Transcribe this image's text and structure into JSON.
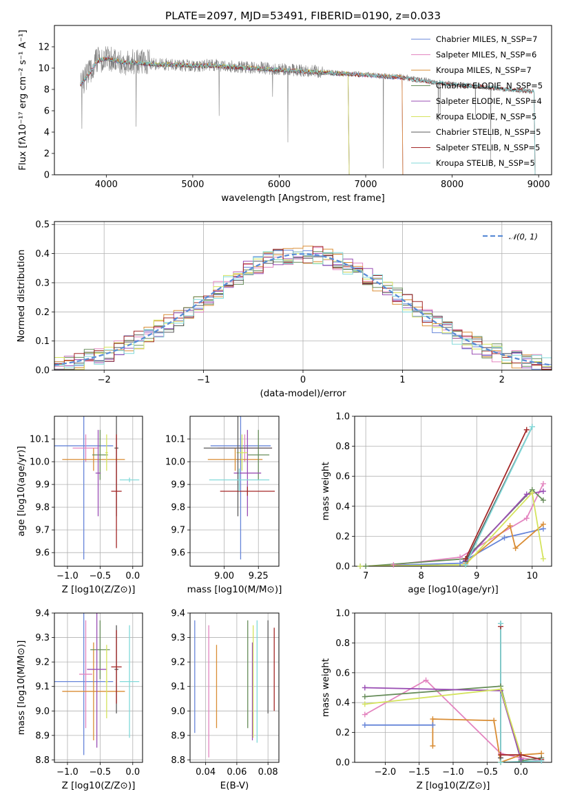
{
  "colors": [
    "#6685d9",
    "#e384bf",
    "#d98c33",
    "#668c59",
    "#994db3",
    "#d4e35c",
    "#595959",
    "#a32626",
    "#80d9d9"
  ],
  "chart_data": [
    {
      "id": "spectrum",
      "type": "line",
      "title": "PLATE=2097, MJD=53491, FIBERID=0190, z=0.033",
      "xlabel": "wavelength [Angstrom, rest frame]",
      "ylabel": "Flux [fλ10⁻¹⁷ erg cm⁻² s⁻¹ A⁻¹]",
      "xlim": [
        3400,
        9150
      ],
      "ylim": [
        0,
        14
      ],
      "xticks": [
        4000,
        5000,
        6000,
        7000,
        8000,
        9000
      ],
      "yticks": [
        0,
        2,
        4,
        6,
        8,
        10,
        12
      ],
      "grid": false,
      "legend_position": "upper-right",
      "data_color": "#808080",
      "data_points": [
        [
          3700,
          8.3
        ],
        [
          3800,
          9.5
        ],
        [
          3900,
          10.8
        ],
        [
          4000,
          11.0
        ],
        [
          4100,
          10.8
        ],
        [
          4200,
          10.5
        ],
        [
          4300,
          10.6
        ],
        [
          4400,
          10.5
        ],
        [
          4600,
          10.4
        ],
        [
          4800,
          10.3
        ],
        [
          5000,
          10.2
        ],
        [
          5200,
          10.3
        ],
        [
          5400,
          10.2
        ],
        [
          5600,
          10.1
        ],
        [
          5800,
          10.0
        ],
        [
          6000,
          9.9
        ],
        [
          6200,
          9.8
        ],
        [
          6400,
          9.7
        ],
        [
          6600,
          9.6
        ],
        [
          6800,
          9.5
        ],
        [
          7000,
          9.4
        ],
        [
          7200,
          9.3
        ],
        [
          7400,
          9.2
        ],
        [
          7600,
          9.0
        ],
        [
          7800,
          8.7
        ],
        [
          8000,
          8.5
        ],
        [
          8200,
          8.4
        ],
        [
          8400,
          8.2
        ],
        [
          8600,
          8.0
        ],
        [
          8800,
          7.9
        ],
        [
          8900,
          7.8
        ]
      ],
      "model_points": [
        [
          3700,
          8.4
        ],
        [
          3800,
          9.4
        ],
        [
          3900,
          10.6
        ],
        [
          4000,
          10.9
        ],
        [
          4100,
          10.7
        ],
        [
          4200,
          10.5
        ],
        [
          4300,
          10.5
        ],
        [
          4400,
          10.4
        ],
        [
          4600,
          10.3
        ],
        [
          4800,
          10.3
        ],
        [
          5000,
          10.2
        ],
        [
          5200,
          10.2
        ],
        [
          5400,
          10.1
        ],
        [
          5600,
          10.0
        ],
        [
          5800,
          9.9
        ],
        [
          6000,
          9.8
        ],
        [
          6200,
          9.7
        ],
        [
          6400,
          9.6
        ],
        [
          6600,
          9.5
        ],
        [
          6800,
          9.4
        ],
        [
          7000,
          9.3
        ],
        [
          7200,
          9.2
        ],
        [
          7400,
          9.1
        ],
        [
          7600,
          8.8
        ],
        [
          7800,
          8.6
        ],
        [
          8000,
          8.4
        ],
        [
          8200,
          8.3
        ],
        [
          8400,
          8.2
        ],
        [
          8600,
          8.0
        ],
        [
          8800,
          7.9
        ],
        [
          8900,
          7.8
        ]
      ],
      "series": [
        {
          "name": "Chabrier MILES, N_SSP=7",
          "xrange": [
            3700,
            7420
          ]
        },
        {
          "name": "Salpeter MILES, N_SSP=6",
          "xrange": [
            3700,
            7420
          ]
        },
        {
          "name": "Kroupa MILES, N_SSP=7",
          "xrange": [
            3700,
            7420
          ]
        },
        {
          "name": "Chabrier ELODIE, N_SSP=5",
          "xrange": [
            3900,
            6800
          ]
        },
        {
          "name": "Salpeter ELODIE, N_SSP=4",
          "xrange": [
            3900,
            6800
          ]
        },
        {
          "name": "Kroupa ELODIE, N_SSP=5",
          "xrange": [
            3900,
            6800
          ]
        },
        {
          "name": "Chabrier STELIB, N_SSP=5",
          "xrange": [
            3700,
            8950
          ]
        },
        {
          "name": "Salpeter STELIB, N_SSP=5",
          "xrange": [
            3700,
            8950
          ]
        },
        {
          "name": "Kroupa STELIB, N_SSP=5",
          "xrange": [
            3700,
            8950
          ]
        }
      ]
    },
    {
      "id": "residuals",
      "type": "line",
      "xlabel": "(data-model)/error",
      "ylabel": "Normed distribution",
      "xlim": [
        -2.5,
        2.5
      ],
      "ylim": [
        0,
        0.51
      ],
      "xticks": [
        -2,
        -1,
        0,
        1,
        2
      ],
      "yticks": [
        0.0,
        0.1,
        0.2,
        0.3,
        0.4,
        0.5
      ],
      "grid": true,
      "legend_position": "upper-right",
      "reference_name": "𝒩(0, 1)",
      "bin_width": 0.1
    },
    {
      "id": "age-vs-Z",
      "type": "scatter",
      "xlabel": "Z [log10(Z/Z⊙)]",
      "ylabel": "age  [log10(age/yr)]",
      "xlim": [
        -1.2,
        0.15
      ],
      "ylim": [
        9.54,
        10.2
      ],
      "xticks": [
        -1.0,
        -0.5,
        0.0
      ],
      "yticks": [
        9.6,
        9.7,
        9.8,
        9.9,
        10.0,
        10.1
      ],
      "grid": true,
      "points": [
        {
          "x": -0.75,
          "y": 10.07,
          "xerr": 0.45,
          "yerr": 0.5
        },
        {
          "x": -0.72,
          "y": 10.06,
          "xerr": 0.2,
          "yerr": 0.06
        },
        {
          "x": -0.6,
          "y": 10.01,
          "xerr": 0.48,
          "yerr": 0.05
        },
        {
          "x": -0.5,
          "y": 10.03,
          "xerr": 0.12,
          "yerr": 0.11
        },
        {
          "x": -0.53,
          "y": 9.95,
          "xerr": 0.04,
          "yerr": 0.19
        },
        {
          "x": -0.4,
          "y": 10.04,
          "xerr": 0.02,
          "yerr": 0.08
        },
        {
          "x": -0.25,
          "y": 10.06,
          "xerr": 0.03,
          "yerr": 0.3
        },
        {
          "x": -0.25,
          "y": 9.87,
          "xerr": 0.08,
          "yerr": 0.25
        },
        {
          "x": -0.05,
          "y": 9.92,
          "xerr": 0.15,
          "yerr": 0.01
        }
      ]
    },
    {
      "id": "age-vs-mass",
      "type": "scatter",
      "xlabel": "mass [log10(M/M⊙)]",
      "ylabel": "",
      "xlim": [
        8.75,
        9.4
      ],
      "ylim": [
        9.54,
        10.2
      ],
      "xticks": [
        9.0,
        9.25
      ],
      "yticks": [
        9.6,
        9.7,
        9.8,
        9.9,
        10.0,
        10.1
      ],
      "grid": true,
      "points": [
        {
          "x": 9.12,
          "y": 10.07,
          "xerr": 0.22,
          "yerr": 0.5
        },
        {
          "x": 9.15,
          "y": 10.06,
          "xerr": 0.2,
          "yerr": 0.06
        },
        {
          "x": 9.08,
          "y": 10.01,
          "xerr": 0.2,
          "yerr": 0.05
        },
        {
          "x": 9.25,
          "y": 10.03,
          "xerr": 0.08,
          "yerr": 0.11
        },
        {
          "x": 9.17,
          "y": 9.95,
          "xerr": 0.1,
          "yerr": 0.19
        },
        {
          "x": 9.13,
          "y": 10.04,
          "xerr": 0.04,
          "yerr": 0.08
        },
        {
          "x": 9.1,
          "y": 10.06,
          "xerr": 0.25,
          "yerr": 0.3
        },
        {
          "x": 9.17,
          "y": 9.87,
          "xerr": 0.2,
          "yerr": 0.02
        },
        {
          "x": 9.11,
          "y": 9.92,
          "xerr": 0.22,
          "yerr": 0.05
        }
      ]
    },
    {
      "id": "massweight-vs-age",
      "type": "line",
      "xlabel": "age  [log10(age/yr)]",
      "ylabel": "mass weight",
      "xlim": [
        6.8,
        10.35
      ],
      "ylim": [
        0,
        1
      ],
      "xticks": [
        7,
        8,
        9,
        10
      ],
      "yticks": [
        0.0,
        0.2,
        0.4,
        0.6,
        0.8,
        1.0
      ],
      "grid": true,
      "series": [
        {
          "points": [
            [
              6.9,
              0.0
            ],
            [
              8.7,
              0.02
            ],
            [
              9.5,
              0.19
            ],
            [
              10.2,
              0.25
            ]
          ]
        },
        {
          "points": [
            [
              7.5,
              0.01
            ],
            [
              8.7,
              0.06
            ],
            [
              9.9,
              0.32
            ],
            [
              10.2,
              0.55
            ]
          ]
        },
        {
          "points": [
            [
              8.8,
              0.02
            ],
            [
              9.6,
              0.27
            ],
            [
              9.7,
              0.12
            ],
            [
              10.2,
              0.28
            ]
          ]
        },
        {
          "points": [
            [
              7.0,
              0.0
            ],
            [
              8.8,
              0.05
            ],
            [
              10.0,
              0.51
            ],
            [
              10.2,
              0.44
            ]
          ]
        },
        {
          "points": [
            [
              8.8,
              0.04
            ],
            [
              9.9,
              0.48
            ],
            [
              10.2,
              0.5
            ]
          ]
        },
        {
          "points": [
            [
              6.9,
              0.0
            ],
            [
              8.8,
              0.01
            ],
            [
              10.0,
              0.49
            ],
            [
              10.2,
              0.05
            ]
          ]
        },
        {
          "points": [
            [
              8.8,
              0.03
            ],
            [
              10.0,
              0.93
            ]
          ]
        },
        {
          "points": [
            [
              8.8,
              0.05
            ],
            [
              9.9,
              0.91
            ]
          ]
        },
        {
          "points": [
            [
              8.8,
              0.01
            ],
            [
              10.0,
              0.93
            ]
          ]
        }
      ]
    },
    {
      "id": "mass-vs-Z",
      "type": "scatter",
      "xlabel": "Z [log10(Z/Z⊙)]",
      "ylabel": "mass [log10(M/M⊙)]",
      "xlim": [
        -1.2,
        0.15
      ],
      "ylim": [
        8.79,
        9.4
      ],
      "xticks": [
        -1.0,
        -0.5,
        0.0
      ],
      "yticks": [
        8.8,
        8.9,
        9.0,
        9.1,
        9.2,
        9.3,
        9.4
      ],
      "grid": true,
      "points": [
        {
          "x": -0.75,
          "y": 9.12,
          "xerr": 0.45,
          "yerr": 0.3
        },
        {
          "x": -0.72,
          "y": 9.15,
          "xerr": 0.1,
          "yerr": 0.22
        },
        {
          "x": -0.6,
          "y": 9.08,
          "xerr": 0.48,
          "yerr": 0.2
        },
        {
          "x": -0.5,
          "y": 9.25,
          "xerr": 0.15,
          "yerr": 0.12
        },
        {
          "x": -0.55,
          "y": 9.17,
          "xerr": 0.15,
          "yerr": 0.32
        },
        {
          "x": -0.4,
          "y": 9.12,
          "xerr": 0.02,
          "yerr": 0.15
        },
        {
          "x": -0.25,
          "y": 9.17,
          "xerr": 0.03,
          "yerr": 0.18
        },
        {
          "x": -0.25,
          "y": 9.18,
          "xerr": 0.08,
          "yerr": 0.15
        },
        {
          "x": -0.05,
          "y": 9.12,
          "xerr": 0.15,
          "yerr": 0.23
        }
      ]
    },
    {
      "id": "mass-vs-ebv",
      "type": "scatter",
      "xlabel": "E(B-V)",
      "ylabel": "",
      "xlim": [
        0.03,
        0.087
      ],
      "ylim": [
        8.79,
        9.4
      ],
      "xticks": [
        0.04,
        0.06,
        0.08
      ],
      "yticks": [
        8.8,
        8.9,
        9.0,
        9.1,
        9.2,
        9.3,
        9.4
      ],
      "grid": true,
      "points": [
        {
          "x": 0.033,
          "y": 9.14,
          "yerr": 0.23
        },
        {
          "x": 0.042,
          "y": 9.08,
          "yerr": 0.27
        },
        {
          "x": 0.047,
          "y": 9.1,
          "yerr": 0.17
        },
        {
          "x": 0.067,
          "y": 9.15,
          "yerr": 0.22
        },
        {
          "x": 0.07,
          "y": 9.08,
          "yerr": 0.2
        },
        {
          "x": 0.0705,
          "y": 9.12,
          "yerr": 0.23
        },
        {
          "x": 0.08,
          "y": 9.18,
          "yerr": 0.19
        },
        {
          "x": 0.084,
          "y": 9.17,
          "yerr": 0.17
        },
        {
          "x": 0.073,
          "y": 9.12,
          "yerr": 0.25
        }
      ]
    },
    {
      "id": "massweight-vs-Z",
      "type": "line",
      "xlabel": "Z [log10(Z/Z⊙)]",
      "ylabel": "mass weight",
      "xlim": [
        -2.45,
        0.45
      ],
      "ylim": [
        0,
        1
      ],
      "xticks": [
        -2.0,
        -1.5,
        -1.0,
        -0.5,
        0.0
      ],
      "yticks": [
        0.0,
        0.2,
        0.4,
        0.6,
        0.8,
        1.0
      ],
      "grid": true,
      "series": [
        {
          "points": [
            [
              -2.3,
              0.25
            ],
            [
              -1.3,
              0.25
            ]
          ]
        },
        {
          "points": [
            [
              -2.3,
              0.32
            ],
            [
              -1.4,
              0.55
            ],
            [
              -0.3,
              0.06
            ],
            [
              0.0,
              0.03
            ],
            [
              0.3,
              0.01
            ]
          ]
        },
        {
          "points": [
            [
              -1.3,
              0.11
            ],
            [
              -1.3,
              0.29
            ],
            [
              -0.4,
              0.28
            ],
            [
              -0.3,
              0.0
            ],
            [
              0.0,
              0.05
            ],
            [
              0.3,
              0.06
            ]
          ]
        },
        {
          "points": [
            [
              -2.3,
              0.44
            ],
            [
              -0.3,
              0.51
            ],
            [
              0.0,
              0.01
            ],
            [
              0.3,
              0.03
            ]
          ]
        },
        {
          "points": [
            [
              -2.3,
              0.5
            ],
            [
              -0.3,
              0.48
            ],
            [
              0.0,
              0.02
            ]
          ]
        },
        {
          "points": [
            [
              -2.3,
              0.39
            ],
            [
              -0.3,
              0.49
            ],
            [
              0.0,
              0.05
            ]
          ]
        },
        {
          "points": [
            [
              -0.3,
              0.93
            ],
            [
              -0.3,
              0.03
            ]
          ]
        },
        {
          "points": [
            [
              -0.3,
              0.91
            ],
            [
              -0.3,
              0.05
            ],
            [
              0.0,
              0.05
            ],
            [
              0.3,
              0.02
            ]
          ]
        },
        {
          "points": [
            [
              -0.3,
              0.93
            ],
            [
              -0.3,
              0.0
            ],
            [
              0.3,
              0.01
            ]
          ]
        }
      ]
    }
  ]
}
